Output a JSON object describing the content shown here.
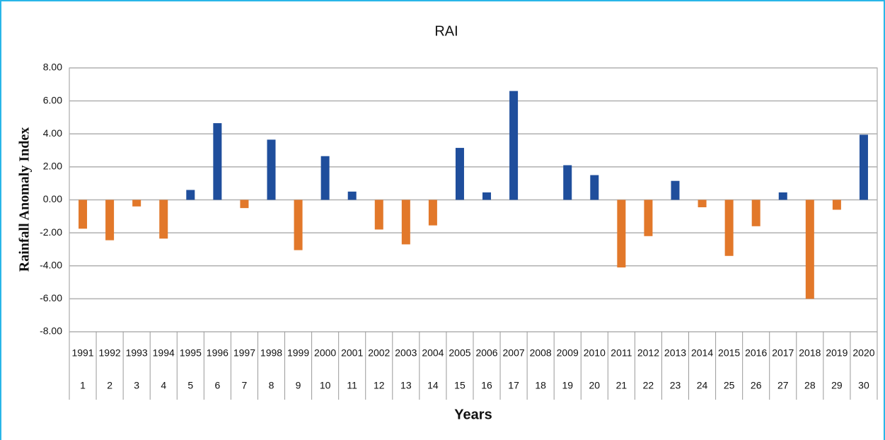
{
  "chart_data": {
    "type": "bar",
    "title": "RAI",
    "y_label": "Rainfall Anomaly Index",
    "x_label": "Years",
    "categories": [
      "1991",
      "1992",
      "1993",
      "1994",
      "1995",
      "1996",
      "1997",
      "1998",
      "1999",
      "2000",
      "2001",
      "2002",
      "2003",
      "2004",
      "2005",
      "2006",
      "2007",
      "2008",
      "2009",
      "2010",
      "2011",
      "2012",
      "2013",
      "2014",
      "2015",
      "2016",
      "2017",
      "2018",
      "2019",
      "2020"
    ],
    "category_numbers": [
      "1",
      "2",
      "3",
      "4",
      "5",
      "6",
      "7",
      "8",
      "9",
      "10",
      "11",
      "12",
      "13",
      "14",
      "15",
      "16",
      "17",
      "18",
      "19",
      "20",
      "21",
      "22",
      "23",
      "24",
      "25",
      "26",
      "27",
      "28",
      "29",
      "30"
    ],
    "values": [
      -1.75,
      -2.45,
      -0.4,
      -2.35,
      0.6,
      4.65,
      -0.5,
      3.65,
      -3.05,
      2.65,
      0.5,
      -1.8,
      -2.7,
      -1.55,
      3.15,
      0.45,
      6.6,
      0,
      2.1,
      1.5,
      -4.1,
      -2.2,
      1.15,
      -0.45,
      -3.4,
      -1.6,
      0.45,
      -6.0,
      -0.6,
      3.95
    ],
    "positive_color": "#1f4e9c",
    "negative_color": "#e2782a",
    "ylim": [
      -8,
      8
    ],
    "yticks": [
      {
        "value": -8,
        "label": "-8.00"
      },
      {
        "value": -6,
        "label": "-6.00"
      },
      {
        "value": -4,
        "label": "-4.00"
      },
      {
        "value": -2,
        "label": "-2.00"
      },
      {
        "value": 0,
        "label": "0.00"
      },
      {
        "value": 2,
        "label": "2.00"
      },
      {
        "value": 4,
        "label": "4.00"
      },
      {
        "value": 6,
        "label": "6.00"
      },
      {
        "value": 8,
        "label": "8.00"
      }
    ],
    "grid": true
  }
}
